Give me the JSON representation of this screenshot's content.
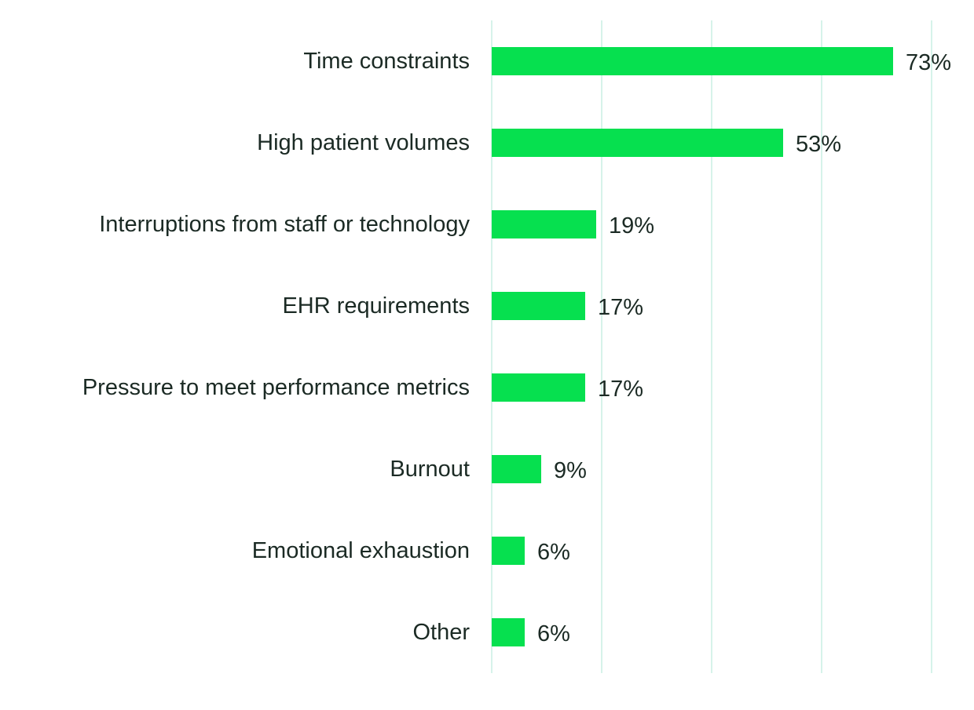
{
  "chart_data": {
    "type": "bar",
    "orientation": "horizontal",
    "title": "",
    "xlabel": "",
    "ylabel": "",
    "categories": [
      "Time constraints",
      "High patient volumes",
      "Interruptions from staff or technology",
      "EHR requirements",
      "Pressure to meet performance metrics",
      "Burnout",
      "Emotional exhaustion",
      "Other"
    ],
    "values": [
      73,
      53,
      19,
      17,
      17,
      9,
      6,
      6
    ],
    "value_labels": [
      "73%",
      "53%",
      "19%",
      "17%",
      "17%",
      "9%",
      "6%",
      "6%"
    ],
    "xlim": [
      0,
      80
    ],
    "gridlines_x": [
      0,
      20,
      40,
      60,
      80
    ],
    "grid": true,
    "legend": "none",
    "colors": {
      "bar": "#06e04f",
      "grid": "#d6f3ea",
      "text": "#1b2a24"
    }
  }
}
